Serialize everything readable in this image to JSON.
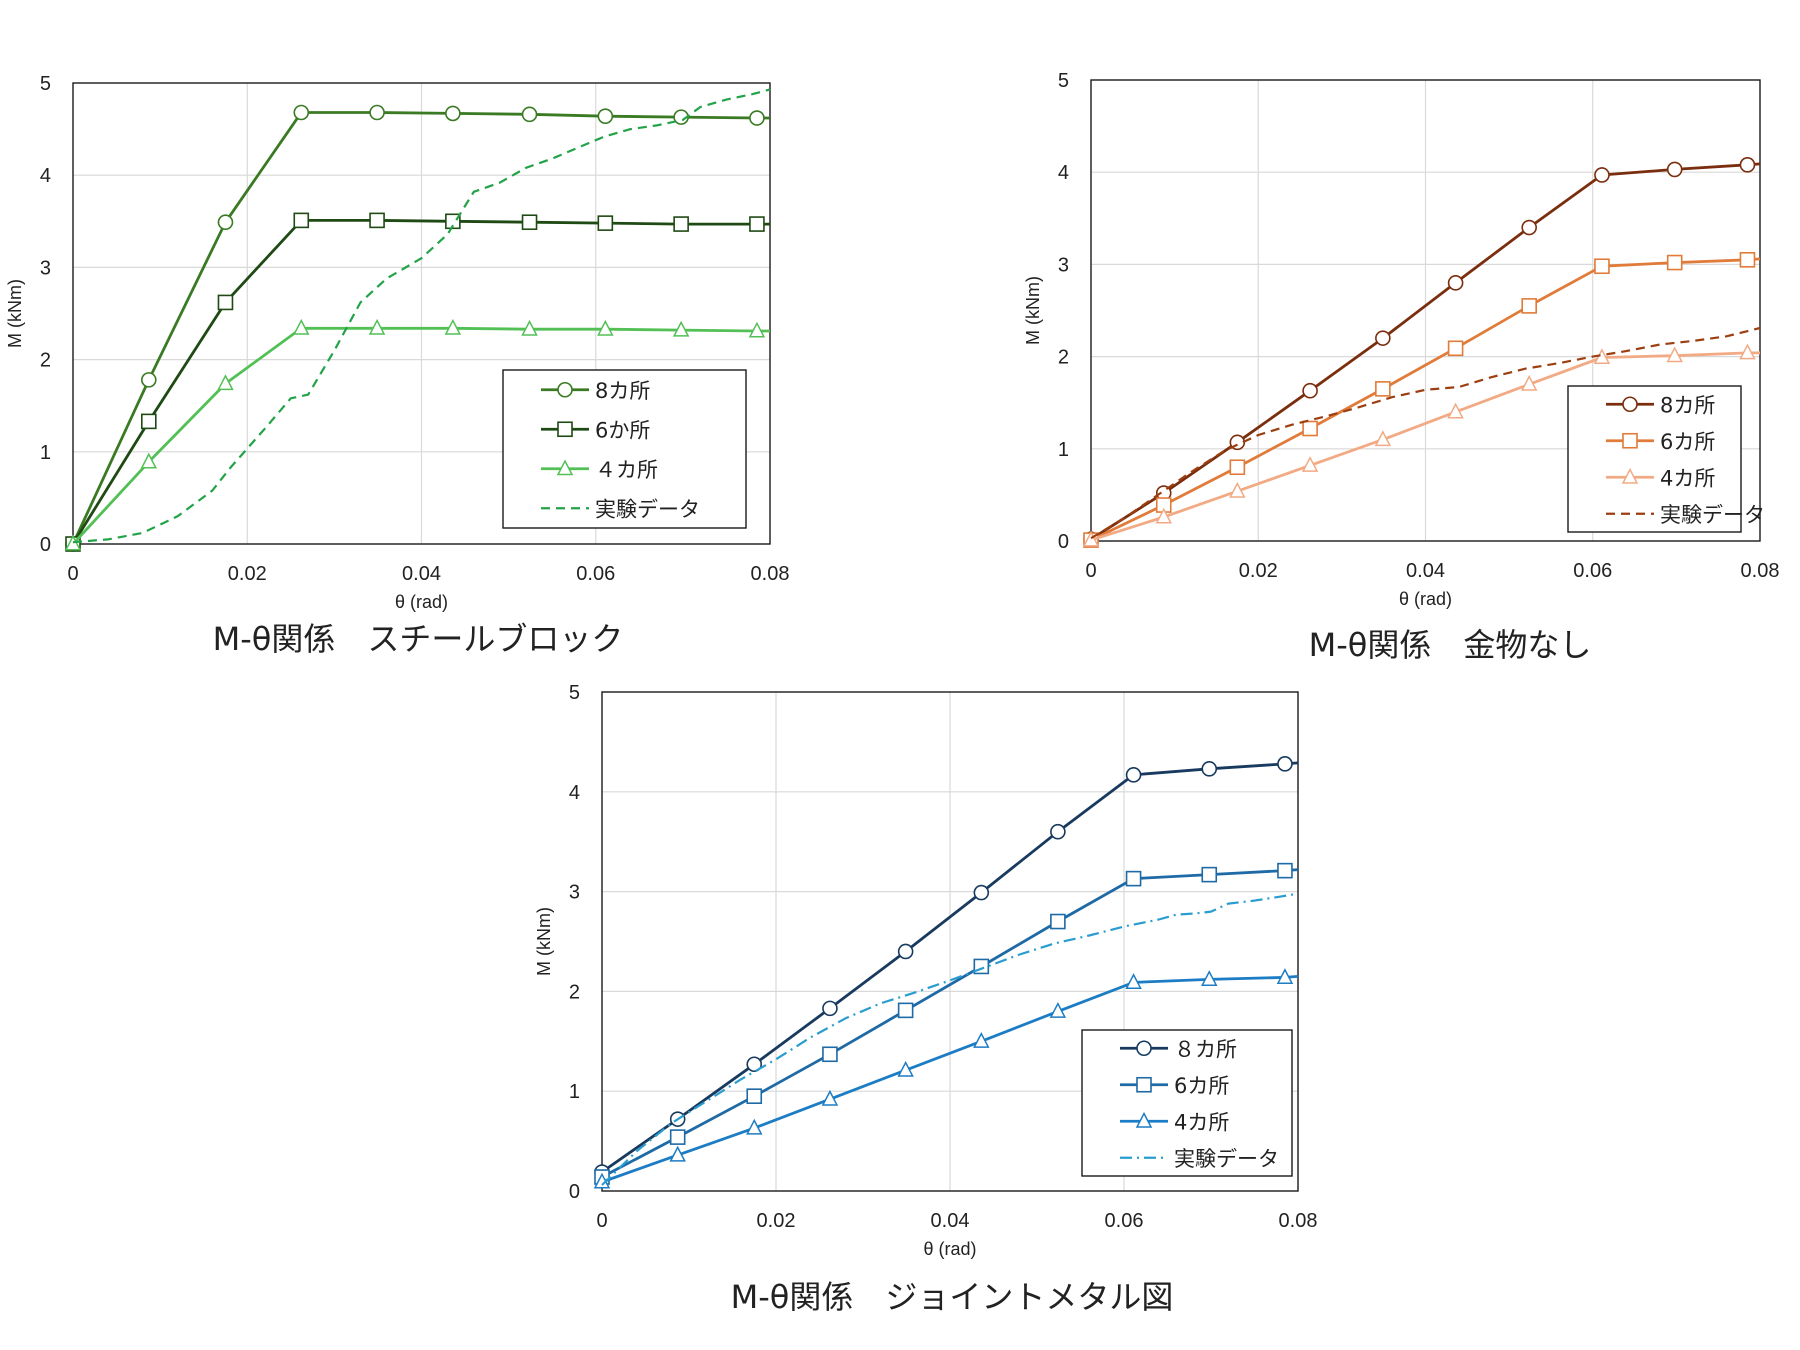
{
  "chart_data": [
    {
      "type": "line",
      "caption": "M-θ関係　スチールブロック",
      "xlabel": "θ (rad)",
      "ylabel": "M (kNm)",
      "xlim": [
        0,
        0.08
      ],
      "ylim": [
        0,
        5
      ],
      "xticks": [
        0,
        0.02,
        0.04,
        0.06,
        0.08
      ],
      "xtick_labels": [
        "0",
        "0.02",
        "0.04",
        "0.06",
        "0.08"
      ],
      "yticks": [
        0,
        1,
        2,
        3,
        4,
        5
      ],
      "ytick_labels": [
        "0",
        "1",
        "2",
        "3",
        "4",
        "5"
      ],
      "grid": true,
      "legend_position": "bottom-right",
      "series": [
        {
          "name": "8カ所",
          "color": "#3a7a23",
          "marker": "circle",
          "style": "solid",
          "x": [
            0,
            0.0087,
            0.0175,
            0.0262,
            0.0349,
            0.0436,
            0.0524,
            0.0611,
            0.0698,
            0.0785,
            0.08
          ],
          "y": [
            0,
            1.78,
            3.49,
            4.68,
            4.68,
            4.67,
            4.66,
            4.64,
            4.63,
            4.62,
            4.62
          ]
        },
        {
          "name": "6か所",
          "color": "#1f4a14",
          "marker": "square",
          "style": "solid",
          "x": [
            0,
            0.0087,
            0.0175,
            0.0262,
            0.0349,
            0.0436,
            0.0524,
            0.0611,
            0.0698,
            0.0785,
            0.08
          ],
          "y": [
            0,
            1.33,
            2.62,
            3.51,
            3.51,
            3.5,
            3.49,
            3.48,
            3.47,
            3.47,
            3.47
          ]
        },
        {
          "name": "４カ所",
          "color": "#52c055",
          "marker": "triangle",
          "style": "solid",
          "x": [
            0,
            0.0087,
            0.0175,
            0.0262,
            0.0349,
            0.0436,
            0.0524,
            0.0611,
            0.0698,
            0.0785,
            0.08
          ],
          "y": [
            0,
            0.89,
            1.74,
            2.34,
            2.34,
            2.34,
            2.33,
            2.33,
            2.32,
            2.31,
            2.31
          ]
        },
        {
          "name": "実験データ",
          "color": "#22a348",
          "marker": "none",
          "style": "dashed",
          "x": [
            0,
            0.004,
            0.008,
            0.012,
            0.016,
            0.018,
            0.022,
            0.025,
            0.027,
            0.03,
            0.033,
            0.036,
            0.04,
            0.043,
            0.046,
            0.049,
            0.052,
            0.055,
            0.058,
            0.061,
            0.064,
            0.067,
            0.07,
            0.072,
            0.075,
            0.078,
            0.08
          ],
          "y": [
            0.02,
            0.05,
            0.12,
            0.3,
            0.58,
            0.82,
            1.25,
            1.58,
            1.62,
            2.1,
            2.62,
            2.88,
            3.1,
            3.36,
            3.82,
            3.92,
            4.08,
            4.18,
            4.3,
            4.42,
            4.5,
            4.54,
            4.6,
            4.74,
            4.82,
            4.88,
            4.93
          ]
        }
      ]
    },
    {
      "type": "line",
      "caption": "M-θ関係　金物なし",
      "xlabel": "θ (rad)",
      "ylabel": "M (kNm)",
      "xlim": [
        0,
        0.08
      ],
      "ylim": [
        0,
        5
      ],
      "xticks": [
        0,
        0.02,
        0.04,
        0.06,
        0.08
      ],
      "xtick_labels": [
        "0",
        "0.02",
        "0.04",
        "0.06",
        "0.08"
      ],
      "yticks": [
        0,
        1,
        2,
        3,
        4,
        5
      ],
      "ytick_labels": [
        "0",
        "1",
        "2",
        "3",
        "4",
        "5"
      ],
      "grid": true,
      "legend_position": "bottom-right",
      "series": [
        {
          "name": "8カ所",
          "color": "#7a2e0e",
          "marker": "circle",
          "style": "solid",
          "x": [
            0,
            0.0087,
            0.0175,
            0.0262,
            0.0349,
            0.0436,
            0.0524,
            0.0611,
            0.0698,
            0.0785,
            0.08
          ],
          "y": [
            0.02,
            0.52,
            1.07,
            1.63,
            2.2,
            2.8,
            3.4,
            3.97,
            4.03,
            4.08,
            4.09
          ]
        },
        {
          "name": "6カ所",
          "color": "#e07b39",
          "marker": "square",
          "style": "solid",
          "x": [
            0,
            0.0087,
            0.0175,
            0.0262,
            0.0349,
            0.0436,
            0.0524,
            0.0611,
            0.0698,
            0.0785,
            0.08
          ],
          "y": [
            0.01,
            0.39,
            0.8,
            1.22,
            1.65,
            2.09,
            2.55,
            2.98,
            3.02,
            3.05,
            3.06
          ]
        },
        {
          "name": "4カ所",
          "color": "#f2aa84",
          "marker": "triangle",
          "style": "solid",
          "x": [
            0,
            0.0087,
            0.0175,
            0.0262,
            0.0349,
            0.0436,
            0.0524,
            0.0611,
            0.0698,
            0.0785,
            0.08
          ],
          "y": [
            0.01,
            0.26,
            0.54,
            0.82,
            1.1,
            1.4,
            1.7,
            1.99,
            2.01,
            2.04,
            2.04
          ]
        },
        {
          "name": "実験データ",
          "color": "#9c3e10",
          "marker": "none",
          "style": "dashed",
          "x": [
            0,
            0.004,
            0.008,
            0.012,
            0.016,
            0.02,
            0.024,
            0.028,
            0.032,
            0.036,
            0.04,
            0.044,
            0.048,
            0.052,
            0.056,
            0.06,
            0.064,
            0.068,
            0.072,
            0.076,
            0.08
          ],
          "y": [
            0.03,
            0.25,
            0.5,
            0.75,
            0.98,
            1.15,
            1.26,
            1.35,
            1.45,
            1.56,
            1.64,
            1.67,
            1.78,
            1.87,
            1.93,
            2.0,
            2.06,
            2.13,
            2.17,
            2.22,
            2.31
          ]
        }
      ]
    },
    {
      "type": "line",
      "caption": "M-θ関係　ジョイントメタル図",
      "xlabel": "θ (rad)",
      "ylabel": "M (kNm)",
      "xlim": [
        0,
        0.08
      ],
      "ylim": [
        0,
        5
      ],
      "xticks": [
        0,
        0.02,
        0.04,
        0.06,
        0.08
      ],
      "xtick_labels": [
        "0",
        "0.02",
        "0.04",
        "0.06",
        "0.08"
      ],
      "yticks": [
        0,
        1,
        2,
        3,
        4,
        5
      ],
      "ytick_labels": [
        "0",
        "1",
        "2",
        "3",
        "4",
        "5"
      ],
      "grid": true,
      "legend_position": "bottom-right",
      "series": [
        {
          "name": "８カ所",
          "color": "#173a5e",
          "marker": "circle",
          "style": "solid",
          "x": [
            0,
            0.0087,
            0.0175,
            0.0262,
            0.0349,
            0.0436,
            0.0524,
            0.0611,
            0.0698,
            0.0785,
            0.08
          ],
          "y": [
            0.19,
            0.72,
            1.27,
            1.83,
            2.4,
            2.99,
            3.6,
            4.17,
            4.23,
            4.28,
            4.29
          ]
        },
        {
          "name": "6カ所",
          "color": "#1e6aa6",
          "marker": "square",
          "style": "solid",
          "x": [
            0,
            0.0087,
            0.0175,
            0.0262,
            0.0349,
            0.0436,
            0.0524,
            0.0611,
            0.0698,
            0.0785,
            0.08
          ],
          "y": [
            0.14,
            0.54,
            0.95,
            1.37,
            1.81,
            2.25,
            2.7,
            3.13,
            3.17,
            3.21,
            3.22
          ]
        },
        {
          "name": "4カ所",
          "color": "#1c7cc4",
          "marker": "triangle",
          "style": "solid",
          "x": [
            0,
            0.0087,
            0.0175,
            0.0262,
            0.0349,
            0.0436,
            0.0524,
            0.0611,
            0.0698,
            0.0785,
            0.08
          ],
          "y": [
            0.09,
            0.36,
            0.63,
            0.92,
            1.21,
            1.5,
            1.8,
            2.09,
            2.12,
            2.14,
            2.15
          ]
        },
        {
          "name": "実験データ",
          "color": "#2a9dd0",
          "marker": "none",
          "style": "dashdot",
          "x": [
            0,
            0.004,
            0.008,
            0.012,
            0.016,
            0.02,
            0.024,
            0.028,
            0.032,
            0.036,
            0.04,
            0.044,
            0.048,
            0.052,
            0.056,
            0.06,
            0.064,
            0.066,
            0.068,
            0.07,
            0.072,
            0.075,
            0.078,
            0.08
          ],
          "y": [
            0.06,
            0.4,
            0.68,
            0.9,
            1.12,
            1.32,
            1.54,
            1.73,
            1.88,
            1.99,
            2.11,
            2.24,
            2.37,
            2.48,
            2.56,
            2.65,
            2.72,
            2.77,
            2.78,
            2.8,
            2.88,
            2.91,
            2.95,
            2.98
          ]
        }
      ]
    }
  ]
}
